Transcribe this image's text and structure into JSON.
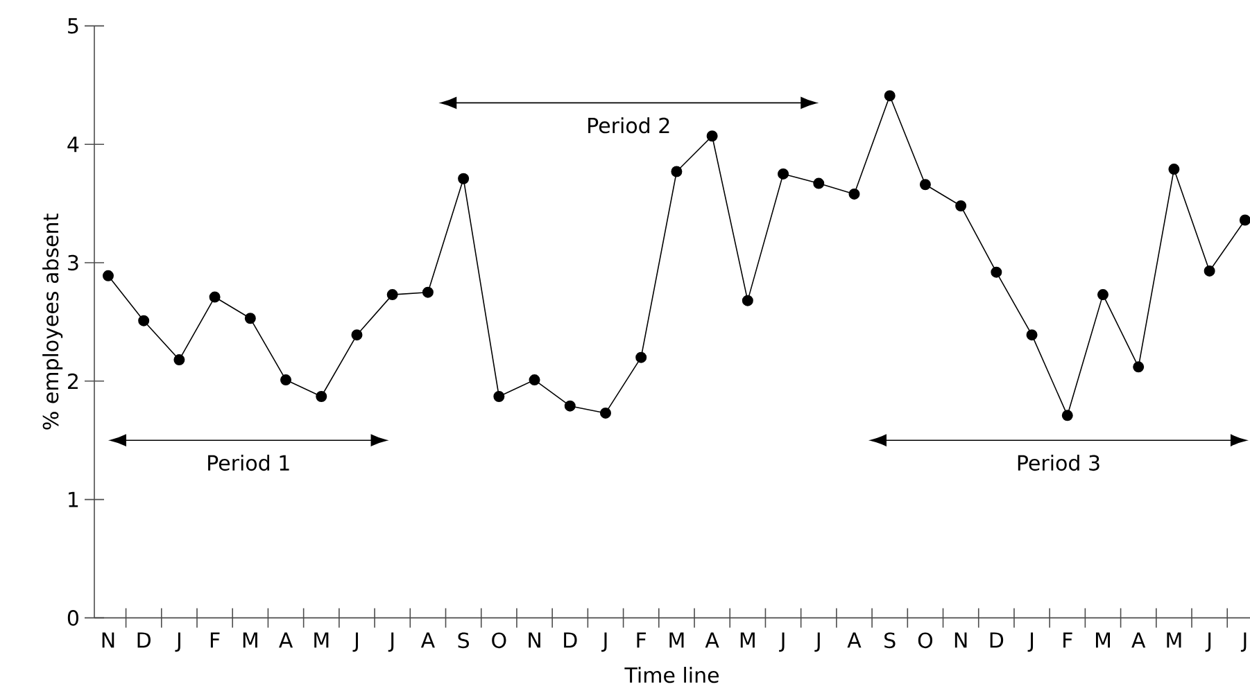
{
  "chart_data": {
    "type": "line",
    "xlabel": "Time line",
    "ylabel": "% employees absent",
    "categories": [
      "N",
      "D",
      "J",
      "F",
      "M",
      "A",
      "M",
      "J",
      "J",
      "A",
      "S",
      "O",
      "N",
      "D",
      "J",
      "F",
      "M",
      "A",
      "M",
      "J",
      "J",
      "A",
      "S",
      "O",
      "N",
      "D",
      "J",
      "F",
      "M",
      "A",
      "M",
      "J",
      "J"
    ],
    "series": [
      {
        "color": "#000000",
        "values": [
          2.89,
          2.51,
          2.18,
          2.71,
          2.53,
          2.01,
          1.87,
          2.39,
          2.73,
          2.75,
          3.71,
          1.87,
          2.01,
          1.79,
          1.73,
          2.2,
          3.77,
          4.07,
          2.68,
          3.75,
          3.67,
          3.58,
          4.41,
          3.66,
          3.48,
          2.92,
          2.39,
          1.71,
          2.73,
          2.12,
          3.79,
          2.93,
          3.36
        ]
      }
    ],
    "ylim": [
      0,
      5
    ],
    "yticks": [
      0,
      1,
      2,
      3,
      4,
      5
    ],
    "marker": "circle",
    "line_style": "solid",
    "annotations": [
      "Period 1",
      "Period 2",
      "Period 3"
    ]
  }
}
